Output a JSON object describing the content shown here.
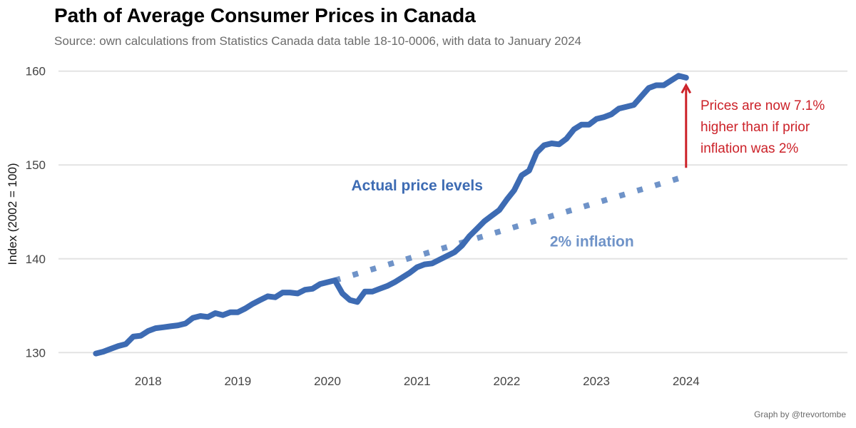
{
  "header": {
    "title": "Path of Average Consumer Prices in Canada",
    "subtitle": "Source: own calculations from Statistics Canada data table 18-10-0006, with data to January 2024"
  },
  "footer": {
    "caption": "Graph by @trevortombe"
  },
  "colors": {
    "actual": "#3d6bb3",
    "trend": "#6f93c8",
    "annotation": "#cc2229",
    "grid": "#e3e3e3"
  },
  "chart_data": {
    "type": "line",
    "title": "Path of Average Consumer Prices in Canada",
    "ylabel": "Index (2002 = 100)",
    "xlabel": "",
    "ylim": [
      128.5,
      161.5
    ],
    "xlim": [
      2017.0,
      2025.8
    ],
    "yticks": [
      130,
      140,
      150,
      160
    ],
    "xticks": [
      2018,
      2019,
      2020,
      2021,
      2022,
      2023,
      2024
    ],
    "grid": "horizontal",
    "series": [
      {
        "name": "Actual price levels",
        "style": "solid",
        "x": [
          2017.417,
          2017.5,
          2017.583,
          2017.667,
          2017.75,
          2017.833,
          2017.917,
          2018.0,
          2018.083,
          2018.167,
          2018.25,
          2018.333,
          2018.417,
          2018.5,
          2018.583,
          2018.667,
          2018.75,
          2018.833,
          2018.917,
          2019.0,
          2019.083,
          2019.167,
          2019.25,
          2019.333,
          2019.417,
          2019.5,
          2019.583,
          2019.667,
          2019.75,
          2019.833,
          2019.917,
          2020.0,
          2020.083,
          2020.167,
          2020.25,
          2020.333,
          2020.417,
          2020.5,
          2020.583,
          2020.667,
          2020.75,
          2020.833,
          2020.917,
          2021.0,
          2021.083,
          2021.167,
          2021.25,
          2021.333,
          2021.417,
          2021.5,
          2021.583,
          2021.667,
          2021.75,
          2021.833,
          2021.917,
          2022.0,
          2022.083,
          2022.167,
          2022.25,
          2022.333,
          2022.417,
          2022.5,
          2022.583,
          2022.667,
          2022.75,
          2022.833,
          2022.917,
          2023.0,
          2023.083,
          2023.167,
          2023.25,
          2023.333,
          2023.417,
          2023.5,
          2023.583,
          2023.667,
          2023.75,
          2023.833,
          2023.917,
          2024.0
        ],
        "values": [
          129.9,
          130.1,
          130.4,
          130.7,
          130.9,
          131.7,
          131.8,
          132.3,
          132.6,
          132.7,
          132.8,
          132.9,
          133.1,
          133.7,
          133.9,
          133.8,
          134.2,
          134.0,
          134.3,
          134.3,
          134.7,
          135.2,
          135.6,
          136.0,
          135.9,
          136.4,
          136.4,
          136.3,
          136.7,
          136.8,
          137.3,
          137.5,
          137.7,
          136.3,
          135.6,
          135.4,
          136.5,
          136.5,
          136.8,
          137.1,
          137.5,
          138.0,
          138.5,
          139.1,
          139.4,
          139.5,
          139.9,
          140.3,
          140.7,
          141.4,
          142.4,
          143.2,
          144.0,
          144.6,
          145.2,
          146.3,
          147.3,
          148.9,
          149.4,
          151.3,
          152.1,
          152.3,
          152.2,
          152.8,
          153.8,
          154.3,
          154.3,
          154.9,
          155.1,
          155.4,
          156.0,
          156.2,
          156.4,
          157.3,
          158.2,
          158.5,
          158.5,
          159.0,
          159.5,
          159.3
        ]
      },
      {
        "name": "2% inflation",
        "style": "dotted",
        "x": [
          2020.083,
          2024.0
        ],
        "values": [
          137.7,
          148.8
        ]
      }
    ],
    "annotations": {
      "actual_label": "Actual price levels",
      "trend_label": "2% inflation",
      "gap_lines": [
        "Prices are now 7.1%",
        "higher than if prior",
        "inflation was 2%"
      ]
    }
  }
}
